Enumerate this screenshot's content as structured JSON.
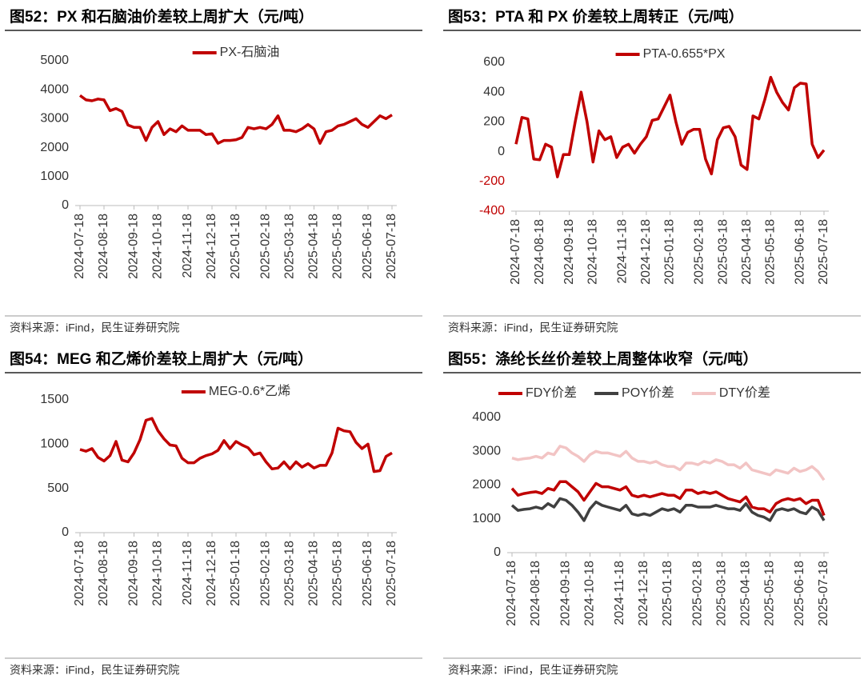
{
  "chart_data": [
    {
      "type": "line",
      "title": "图52：PX 和石脑油价差较上周扩大（元/吨）",
      "source": "资料来源：iFind，民生证券研究院",
      "categories": [
        "2024-07-18",
        null,
        null,
        null,
        "2024-08-18",
        null,
        null,
        null,
        null,
        "2024-09-18",
        null,
        null,
        null,
        "2024-10-18",
        null,
        null,
        null,
        null,
        "2024-11-18",
        null,
        null,
        null,
        "2024-12-18",
        null,
        null,
        null,
        "2025-01-18",
        null,
        null,
        null,
        null,
        "2025-02-18",
        null,
        null,
        null,
        "2025-03-18",
        null,
        null,
        null,
        "2025-04-18",
        null,
        null,
        null,
        "2025-05-18",
        null,
        null,
        null,
        null,
        "2025-06-18",
        null,
        null,
        null,
        "2025-07-18"
      ],
      "series": [
        {
          "name": "PX-石脑油",
          "color": "#c00000",
          "values": [
            3800,
            3650,
            3620,
            3680,
            3650,
            3280,
            3350,
            3250,
            2780,
            2700,
            2700,
            2250,
            2700,
            2900,
            2450,
            2650,
            2550,
            2750,
            2600,
            2600,
            2600,
            2450,
            2480,
            2150,
            2250,
            2250,
            2270,
            2350,
            2700,
            2650,
            2700,
            2650,
            2800,
            3100,
            2600,
            2600,
            2550,
            2650,
            2800,
            2650,
            2150,
            2550,
            2600,
            2750,
            2800,
            2900,
            3000,
            2800,
            2700,
            2900,
            3100,
            3000,
            3130
          ]
        }
      ],
      "ylim": [
        0,
        5000
      ],
      "yticks": [
        0,
        1000,
        2000,
        3000,
        4000,
        5000
      ],
      "grid": false
    },
    {
      "type": "line",
      "title": "图53：PTA 和 PX 价差较上周转正（元/吨）",
      "source": "资料来源：iFind，民生证券研究院",
      "categories": [
        "2024-07-18",
        null,
        null,
        null,
        "2024-08-18",
        null,
        null,
        null,
        null,
        "2024-09-18",
        null,
        null,
        null,
        "2024-10-18",
        null,
        null,
        null,
        null,
        "2024-11-18",
        null,
        null,
        null,
        "2024-12-18",
        null,
        null,
        null,
        "2025-01-18",
        null,
        null,
        null,
        null,
        "2025-02-18",
        null,
        null,
        null,
        "2025-03-18",
        null,
        null,
        null,
        "2025-04-18",
        null,
        null,
        null,
        "2025-05-18",
        null,
        null,
        null,
        null,
        "2025-06-18",
        null,
        null,
        null,
        "2025-07-18"
      ],
      "series": [
        {
          "name": "PTA-0.655*PX",
          "color": "#c00000",
          "values": [
            50,
            230,
            220,
            -50,
            -55,
            50,
            30,
            -170,
            -20,
            -20,
            200,
            400,
            200,
            -70,
            140,
            80,
            100,
            -40,
            30,
            50,
            -10,
            50,
            100,
            210,
            220,
            300,
            380,
            200,
            50,
            130,
            150,
            150,
            -50,
            -150,
            80,
            160,
            170,
            100,
            -90,
            -120,
            240,
            220,
            350,
            500,
            400,
            330,
            280,
            430,
            460,
            455,
            50,
            -40,
            10
          ]
        }
      ],
      "ylim": [
        -400,
        600
      ],
      "yticks": [
        -400,
        -200,
        0,
        200,
        400,
        600
      ],
      "negative_tick_color": "#c00000",
      "grid": false
    },
    {
      "type": "line",
      "title": "图54：MEG 和乙烯价差较上周扩大（元/吨）",
      "source": "资料来源：iFind，民生证券研究院",
      "categories": [
        "2024-07-18",
        null,
        null,
        null,
        "2024-08-18",
        null,
        null,
        null,
        null,
        "2024-09-18",
        null,
        null,
        null,
        "2024-10-18",
        null,
        null,
        null,
        null,
        "2024-11-18",
        null,
        null,
        null,
        "2024-12-18",
        null,
        null,
        null,
        "2025-01-18",
        null,
        null,
        null,
        null,
        "2025-02-18",
        null,
        null,
        null,
        "2025-03-18",
        null,
        null,
        null,
        "2025-04-18",
        null,
        null,
        null,
        "2025-05-18",
        null,
        null,
        null,
        null,
        "2025-06-18",
        null,
        null,
        null,
        "2025-07-18"
      ],
      "series": [
        {
          "name": "MEG-0.6*乙烯",
          "color": "#c00000",
          "values": [
            940,
            920,
            950,
            850,
            810,
            870,
            1030,
            820,
            800,
            900,
            1050,
            1270,
            1290,
            1150,
            1060,
            990,
            980,
            840,
            790,
            790,
            840,
            870,
            890,
            930,
            1040,
            950,
            1030,
            990,
            960,
            880,
            900,
            800,
            720,
            730,
            800,
            720,
            800,
            740,
            780,
            730,
            760,
            760,
            900,
            1180,
            1150,
            1140,
            1020,
            950,
            1000,
            690,
            700,
            860,
            900
          ]
        }
      ],
      "ylim": [
        0,
        1500
      ],
      "yticks": [
        0,
        500,
        1000,
        1500
      ],
      "grid": false
    },
    {
      "type": "line",
      "title": "图55：涤纶长丝价差较上周整体收窄（元/吨）",
      "source": "资料来源：iFind，民生证券研究院",
      "categories": [
        "2024-07-18",
        null,
        null,
        null,
        "2024-08-18",
        null,
        null,
        null,
        null,
        "2024-09-18",
        null,
        null,
        null,
        "2024-10-18",
        null,
        null,
        null,
        null,
        "2024-11-18",
        null,
        null,
        null,
        "2024-12-18",
        null,
        null,
        null,
        "2025-01-18",
        null,
        null,
        null,
        null,
        "2025-02-18",
        null,
        null,
        null,
        "2025-03-18",
        null,
        null,
        null,
        "2025-04-18",
        null,
        null,
        null,
        "2025-05-18",
        null,
        null,
        null,
        null,
        "2025-06-18",
        null,
        null,
        null,
        "2025-07-18"
      ],
      "series": [
        {
          "name": "FDY价差",
          "color": "#c00000",
          "values": [
            1900,
            1700,
            1750,
            1780,
            1800,
            1750,
            1900,
            1850,
            2100,
            2100,
            1950,
            1800,
            1550,
            1800,
            2050,
            1950,
            1950,
            1900,
            1850,
            1950,
            1700,
            1650,
            1700,
            1650,
            1700,
            1750,
            1700,
            1700,
            1600,
            1850,
            1850,
            1750,
            1800,
            1750,
            1800,
            1700,
            1600,
            1550,
            1500,
            1650,
            1350,
            1300,
            1300,
            1200,
            1450,
            1550,
            1600,
            1550,
            1600,
            1450,
            1550,
            1550,
            1100
          ]
        },
        {
          "name": "POY价差",
          "color": "#404040",
          "values": [
            1400,
            1250,
            1280,
            1300,
            1350,
            1300,
            1450,
            1350,
            1600,
            1550,
            1400,
            1200,
            950,
            1300,
            1500,
            1400,
            1350,
            1300,
            1250,
            1400,
            1150,
            1100,
            1150,
            1100,
            1200,
            1300,
            1250,
            1300,
            1200,
            1400,
            1400,
            1350,
            1350,
            1350,
            1400,
            1350,
            1300,
            1300,
            1250,
            1450,
            1200,
            1100,
            1050,
            950,
            1250,
            1300,
            1250,
            1300,
            1200,
            1150,
            1350,
            1250,
            950
          ]
        },
        {
          "name": "DTY价差",
          "color": "#f2c4c4",
          "values": [
            2800,
            2750,
            2780,
            2800,
            2850,
            2800,
            2950,
            2900,
            3150,
            3100,
            2950,
            2850,
            2700,
            2900,
            3000,
            2950,
            2950,
            2900,
            2850,
            3000,
            2800,
            2700,
            2700,
            2650,
            2700,
            2600,
            2550,
            2550,
            2450,
            2650,
            2650,
            2600,
            2700,
            2650,
            2750,
            2700,
            2600,
            2600,
            2500,
            2650,
            2450,
            2400,
            2350,
            2300,
            2450,
            2400,
            2350,
            2500,
            2400,
            2450,
            2550,
            2400,
            2150
          ]
        }
      ],
      "ylim": [
        0,
        4000
      ],
      "yticks": [
        0,
        1000,
        2000,
        3000,
        4000
      ],
      "grid": false
    }
  ]
}
